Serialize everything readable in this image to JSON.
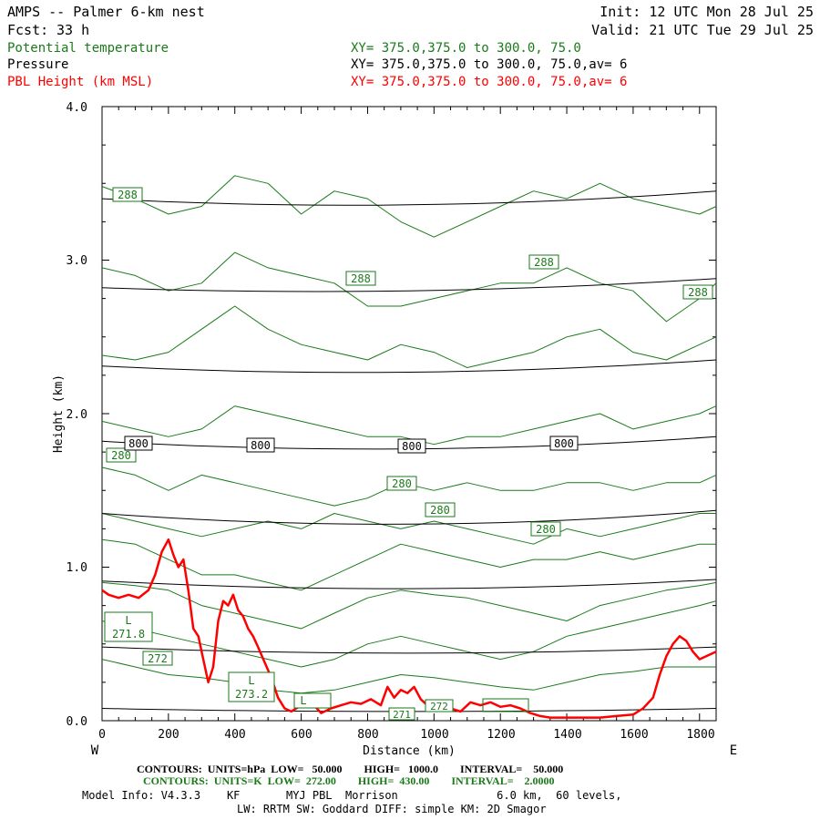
{
  "header": {
    "model_line": "AMPS -- Palmer 6-km nest",
    "fcst_label": "Fcst:",
    "fcst_value": "33 h",
    "init": "Init: 12 UTC Mon 28 Jul 25",
    "valid": "Valid: 21 UTC Tue 29 Jul 25",
    "fields": [
      {
        "name": "Potential temperature",
        "xy": "XY= 375.0,375.0 to 300.0, 75.0",
        "color": "#1a7a1a"
      },
      {
        "name": "Pressure",
        "xy": "XY= 375.0,375.0 to 300.0, 75.0,av=  6",
        "color": "#000000"
      },
      {
        "name": "PBL Height (km MSL)",
        "xy": "XY= 375.0,375.0 to 300.0, 75.0,av=  6",
        "color": "#ff0000"
      }
    ]
  },
  "axes": {
    "ylabel": "Height (km)",
    "xlabel": "Distance (km)",
    "y_ticks": [
      "4.0",
      "3.0",
      "2.0",
      "1.0",
      "0.0"
    ],
    "x_ticks": [
      "0",
      "200",
      "400",
      "600",
      "800",
      "1000",
      "1200",
      "1400",
      "1600",
      "1800"
    ],
    "west": "W",
    "east": "E"
  },
  "contour_labels": {
    "theta": [
      "288",
      "288",
      "288",
      "288",
      "280",
      "280",
      "280",
      "280",
      "272",
      "271.8",
      "273.2",
      "L",
      "L",
      "L",
      "271",
      "272"
    ],
    "pressure": [
      "800",
      "800",
      "800",
      "800"
    ]
  },
  "footer": {
    "line1": "CONTOURS:  UNITS=hPa  LOW=   50.000        HIGH=   1000.0        INTERVAL=    50.000",
    "line2": "CONTOURS:  UNITS=K  LOW=  272.00        HIGH=  430.00        INTERVAL=    2.0000",
    "line3": "Model Info: V4.3.3    KF       MYJ PBL  Morrison               6.0 km,  60 levels,",
    "line4": "LW: RRTM SW: Goddard DIFF: simple KM: 2D Smagor"
  },
  "colors": {
    "theta": "#1a7a1a",
    "pressure": "#000000",
    "pbl": "#ff0000"
  },
  "chart_data": {
    "type": "line",
    "title": "AMPS -- Palmer 6-km nest",
    "xlabel": "Distance (km)",
    "ylabel": "Height (km)",
    "xlim": [
      0,
      1850
    ],
    "ylim": [
      0,
      4.0
    ],
    "series": [
      {
        "name": "PBL Height (km MSL)",
        "x": [
          0,
          20,
          50,
          80,
          110,
          140,
          160,
          180,
          200,
          215,
          230,
          245,
          260,
          275,
          290,
          305,
          320,
          335,
          350,
          365,
          380,
          395,
          410,
          425,
          440,
          455,
          470,
          490,
          510,
          530,
          550,
          570,
          600,
          630,
          660,
          690,
          720,
          750,
          780,
          810,
          840,
          860,
          880,
          900,
          920,
          940,
          960,
          980,
          1000,
          1020,
          1050,
          1080,
          1110,
          1140,
          1170,
          1200,
          1230,
          1260,
          1290,
          1320,
          1350,
          1400,
          1450,
          1500,
          1550,
          1600,
          1630,
          1660,
          1680,
          1700,
          1720,
          1740,
          1760,
          1780,
          1800,
          1820,
          1850
        ],
        "values": [
          0.85,
          0.82,
          0.8,
          0.82,
          0.8,
          0.85,
          0.95,
          1.1,
          1.18,
          1.08,
          1.0,
          1.05,
          0.85,
          0.6,
          0.55,
          0.4,
          0.25,
          0.35,
          0.65,
          0.78,
          0.75,
          0.82,
          0.72,
          0.68,
          0.6,
          0.55,
          0.48,
          0.38,
          0.28,
          0.15,
          0.08,
          0.06,
          0.1,
          0.12,
          0.05,
          0.08,
          0.1,
          0.12,
          0.11,
          0.14,
          0.1,
          0.22,
          0.15,
          0.2,
          0.18,
          0.22,
          0.14,
          0.1,
          0.12,
          0.1,
          0.08,
          0.06,
          0.12,
          0.1,
          0.12,
          0.09,
          0.1,
          0.08,
          0.05,
          0.03,
          0.02,
          0.02,
          0.02,
          0.02,
          0.03,
          0.04,
          0.08,
          0.15,
          0.3,
          0.42,
          0.5,
          0.55,
          0.52,
          0.45,
          0.4,
          0.42,
          0.45
        ]
      },
      {
        "name": "Pressure",
        "levels": [
          {
            "x": [
              0,
              925,
              1850
            ],
            "y": [
              0.08,
              0.06,
              0.08
            ]
          },
          {
            "x": [
              0,
              925,
              1850
            ],
            "y": [
              0.48,
              0.44,
              0.48
            ]
          },
          {
            "x": [
              0,
              925,
              1850
            ],
            "y": [
              0.91,
              0.86,
              0.92
            ]
          },
          {
            "x": [
              0,
              925,
              1850
            ],
            "y": [
              1.35,
              1.28,
              1.37
            ]
          },
          {
            "x": [
              0,
              925,
              1850
            ],
            "y": [
              1.82,
              1.77,
              1.85
            ]
          },
          {
            "x": [
              0,
              925,
              1850
            ],
            "y": [
              2.31,
              2.27,
              2.35
            ]
          },
          {
            "x": [
              0,
              925,
              1850
            ],
            "y": [
              2.82,
              2.8,
              2.88
            ]
          },
          {
            "x": [
              0,
              925,
              1850
            ],
            "y": [
              3.4,
              3.36,
              3.45
            ]
          }
        ]
      },
      {
        "name": "Potential temperature",
        "levels": [
          {
            "x": [
              0,
              100,
              200,
              300,
              400,
              500,
              600,
              700,
              800,
              900,
              1000,
              1100,
              1200,
              1300,
              1400,
              1500,
              1600,
              1700,
              1800,
              1850
            ],
            "y": [
              3.48,
              3.4,
              3.3,
              3.35,
              3.55,
              3.5,
              3.3,
              3.45,
              3.4,
              3.25,
              3.15,
              3.25,
              3.35,
              3.45,
              3.4,
              3.5,
              3.4,
              3.35,
              3.3,
              3.35
            ]
          },
          {
            "x": [
              0,
              100,
              200,
              300,
              400,
              500,
              600,
              700,
              800,
              900,
              1000,
              1100,
              1200,
              1300,
              1400,
              1500,
              1600,
              1700,
              1800,
              1850
            ],
            "y": [
              2.95,
              2.9,
              2.8,
              2.85,
              3.05,
              2.95,
              2.9,
              2.85,
              2.7,
              2.7,
              2.75,
              2.8,
              2.85,
              2.85,
              2.95,
              2.85,
              2.8,
              2.6,
              2.75,
              2.85
            ]
          },
          {
            "x": [
              0,
              100,
              200,
              300,
              400,
              500,
              600,
              700,
              800,
              900,
              1000,
              1100,
              1200,
              1300,
              1400,
              1500,
              1600,
              1700,
              1800,
              1850
            ],
            "y": [
              2.38,
              2.35,
              2.4,
              2.55,
              2.7,
              2.55,
              2.45,
              2.4,
              2.35,
              2.45,
              2.4,
              2.3,
              2.35,
              2.4,
              2.5,
              2.55,
              2.4,
              2.35,
              2.45,
              2.5
            ]
          },
          {
            "x": [
              0,
              100,
              200,
              300,
              400,
              500,
              600,
              700,
              800,
              900,
              1000,
              1100,
              1200,
              1300,
              1400,
              1500,
              1600,
              1700,
              1800,
              1850
            ],
            "y": [
              1.95,
              1.9,
              1.85,
              1.9,
              2.05,
              2.0,
              1.95,
              1.9,
              1.85,
              1.85,
              1.8,
              1.85,
              1.85,
              1.9,
              1.95,
              2.0,
              1.9,
              1.95,
              2.0,
              2.05
            ]
          },
          {
            "x": [
              0,
              100,
              200,
              300,
              400,
              500,
              600,
              700,
              800,
              900,
              1000,
              1100,
              1200,
              1300,
              1400,
              1500,
              1600,
              1700,
              1800,
              1850
            ],
            "y": [
              1.65,
              1.6,
              1.5,
              1.6,
              1.55,
              1.5,
              1.45,
              1.4,
              1.45,
              1.55,
              1.5,
              1.55,
              1.5,
              1.5,
              1.55,
              1.55,
              1.5,
              1.55,
              1.55,
              1.6
            ]
          },
          {
            "x": [
              0,
              100,
              200,
              300,
              400,
              500,
              600,
              700,
              800,
              900,
              1000,
              1100,
              1200,
              1300,
              1400,
              1500,
              1600,
              1700,
              1800,
              1850
            ],
            "y": [
              1.35,
              1.3,
              1.25,
              1.2,
              1.25,
              1.3,
              1.25,
              1.35,
              1.3,
              1.25,
              1.3,
              1.25,
              1.2,
              1.15,
              1.25,
              1.2,
              1.25,
              1.3,
              1.35,
              1.35
            ]
          },
          {
            "x": [
              0,
              100,
              200,
              300,
              400,
              500,
              600,
              700,
              800,
              900,
              1000,
              1100,
              1200,
              1300,
              1400,
              1500,
              1600,
              1700,
              1800,
              1850
            ],
            "y": [
              1.18,
              1.15,
              1.05,
              0.95,
              0.95,
              0.9,
              0.85,
              0.95,
              1.05,
              1.15,
              1.1,
              1.05,
              1.0,
              1.05,
              1.05,
              1.1,
              1.05,
              1.1,
              1.15,
              1.15
            ]
          },
          {
            "x": [
              0,
              100,
              200,
              300,
              400,
              500,
              600,
              700,
              800,
              900,
              1000,
              1100,
              1200,
              1300,
              1400,
              1500,
              1600,
              1700,
              1800,
              1850
            ],
            "y": [
              0.9,
              0.88,
              0.85,
              0.75,
              0.7,
              0.65,
              0.6,
              0.7,
              0.8,
              0.85,
              0.82,
              0.8,
              0.75,
              0.7,
              0.65,
              0.75,
              0.8,
              0.85,
              0.88,
              0.9
            ]
          },
          {
            "x": [
              0,
              100,
              200,
              300,
              400,
              500,
              600,
              700,
              800,
              900,
              1000,
              1100,
              1200,
              1300,
              1400,
              1500,
              1600,
              1700,
              1800,
              1850
            ],
            "y": [
              0.65,
              0.6,
              0.55,
              0.5,
              0.45,
              0.4,
              0.35,
              0.4,
              0.5,
              0.55,
              0.5,
              0.45,
              0.4,
              0.45,
              0.55,
              0.6,
              0.65,
              0.7,
              0.75,
              0.78
            ]
          },
          {
            "x": [
              0,
              100,
              200,
              300,
              400,
              500,
              600,
              700,
              800,
              900,
              1000,
              1100,
              1200,
              1300,
              1400,
              1500,
              1600,
              1700,
              1800,
              1850
            ],
            "y": [
              0.4,
              0.35,
              0.3,
              0.28,
              0.25,
              0.2,
              0.18,
              0.2,
              0.25,
              0.3,
              0.28,
              0.25,
              0.22,
              0.2,
              0.25,
              0.3,
              0.32,
              0.35,
              0.35,
              0.35
            ]
          }
        ]
      }
    ]
  }
}
